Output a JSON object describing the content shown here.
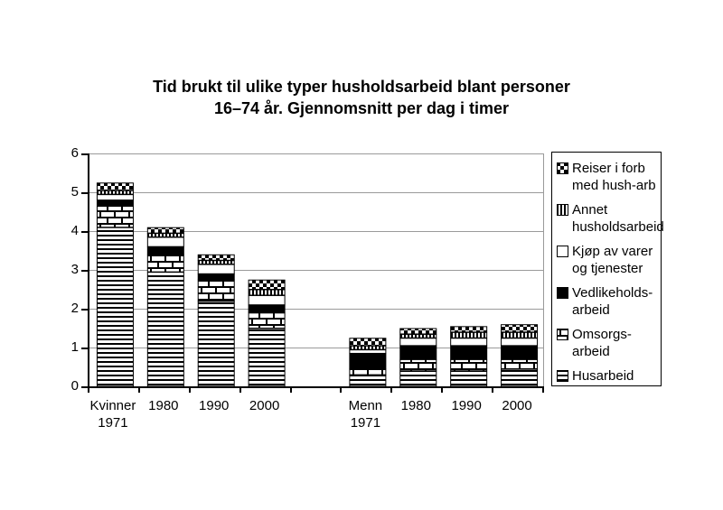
{
  "title": {
    "line1": "Tid brukt til ulike typer husholdsarbeid blant personer",
    "line2": "16–74 år. Gjennomsnitt per dag i timer"
  },
  "chart_data": {
    "type": "bar",
    "stacked": true,
    "title": "Tid brukt til ulike typer husholdsarbeid blant personer 16–74 år. Gjennomsnitt per dag i timer",
    "xlabel": "",
    "ylabel": "",
    "ylim": [
      0,
      6
    ],
    "yticks": [
      0,
      1,
      2,
      3,
      4,
      5,
      6
    ],
    "grid": true,
    "legend_position": "right",
    "categories": [
      "Kvinner\n1971",
      "1980",
      "1990",
      "2000",
      "Menn\n1971",
      "1980",
      "1990",
      "2000"
    ],
    "gap_after_category_index": 3,
    "series": [
      {
        "name": "Husarbeid",
        "pattern": "hlines",
        "values": [
          4.1,
          2.95,
          2.2,
          1.5,
          0.3,
          0.4,
          0.4,
          0.45
        ]
      },
      {
        "name": "Omsorgsarbeid",
        "pattern": "brick",
        "values": [
          0.55,
          0.45,
          0.55,
          0.4,
          0.15,
          0.3,
          0.3,
          0.25
        ]
      },
      {
        "name": "Vedlikeholdsarbeid",
        "pattern": "black",
        "values": [
          0.15,
          0.2,
          0.15,
          0.2,
          0.4,
          0.35,
          0.35,
          0.35
        ]
      },
      {
        "name": "Kjøp av varer og tjenester",
        "pattern": "white",
        "values": [
          0.15,
          0.25,
          0.25,
          0.25,
          0.1,
          0.2,
          0.2,
          0.2
        ]
      },
      {
        "name": "Annet husholdsarbeid",
        "pattern": "vlines",
        "values": [
          0.1,
          0.1,
          0.1,
          0.15,
          0.1,
          0.1,
          0.15,
          0.15
        ]
      },
      {
        "name": "Reiser i forb med hush-arb",
        "pattern": "checker",
        "values": [
          0.2,
          0.15,
          0.15,
          0.25,
          0.2,
          0.15,
          0.15,
          0.2
        ]
      }
    ]
  },
  "legend": {
    "items": [
      {
        "lines": "Reiser i forb\nmed hush-arb",
        "pattern": "checker"
      },
      {
        "lines": "Annet\nhusholdsarbeid",
        "pattern": "vlines"
      },
      {
        "lines": "Kjøp av varer\nog tjenester",
        "pattern": "white"
      },
      {
        "lines": "Vedlikeholds-\narbeid",
        "pattern": "black"
      },
      {
        "lines": "Omsorgs-\narbeid",
        "pattern": "brick"
      },
      {
        "lines": "Husarbeid",
        "pattern": "hlines"
      }
    ]
  },
  "colors": {
    "ink": "#000000",
    "paper": "#ffffff",
    "gridline": "#9a9a9a"
  }
}
